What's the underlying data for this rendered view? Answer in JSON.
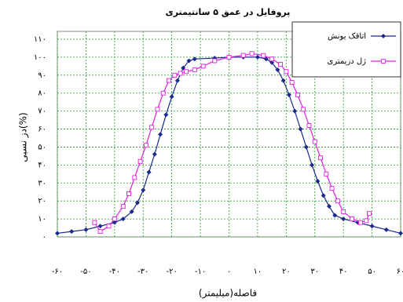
{
  "chart_data": {
    "type": "line",
    "title": "پروفایل در عمق ۵ سانتیمتری",
    "x_label": "فاصله(میلیمتر)",
    "y_label": "دز نسبی(%)",
    "xlim": [
      -60,
      60
    ],
    "ylim": [
      0,
      110
    ],
    "xticks": [
      {
        "value": -60,
        "label": "-۶۰"
      },
      {
        "value": -50,
        "label": "-۵۰"
      },
      {
        "value": -40,
        "label": "-۴۰"
      },
      {
        "value": -30,
        "label": "-۳۰"
      },
      {
        "value": -20,
        "label": "-۲۰"
      },
      {
        "value": -10,
        "label": "-۱۰"
      },
      {
        "value": 0,
        "label": "۰"
      },
      {
        "value": 10,
        "label": "۱۰"
      },
      {
        "value": 20,
        "label": "۲۰"
      },
      {
        "value": 30,
        "label": "۳۰"
      },
      {
        "value": 40,
        "label": "۴۰"
      },
      {
        "value": 50,
        "label": "۵۰"
      },
      {
        "value": 60,
        "label": "۶۰"
      }
    ],
    "yticks": [
      {
        "value": 0,
        "label": "۰"
      },
      {
        "value": 10,
        "label": "۱۰"
      },
      {
        "value": 20,
        "label": "۲۰"
      },
      {
        "value": 30,
        "label": "۳۰"
      },
      {
        "value": 40,
        "label": "۴۰"
      },
      {
        "value": 50,
        "label": "۵۰"
      },
      {
        "value": 60,
        "label": "۶۰"
      },
      {
        "value": 70,
        "label": "۷۰"
      },
      {
        "value": 80,
        "label": "۸۰"
      },
      {
        "value": 90,
        "label": "۹۰"
      },
      {
        "value": 100,
        "label": "۱۰۰"
      },
      {
        "value": 110,
        "label": "۱۱۰"
      }
    ],
    "grid": true,
    "legend": "upper right",
    "series": [
      {
        "name": "اتاقک یونش",
        "color": "#1a2a8c",
        "marker": "diamond",
        "x": [
          -60,
          -55,
          -50,
          -45,
          -40,
          -37,
          -34,
          -32,
          -30,
          -28,
          -26,
          -24,
          -22,
          -20,
          -18,
          -16,
          -14,
          -12,
          -5,
          0,
          5,
          10,
          13,
          15,
          17,
          19,
          21,
          23,
          25,
          27,
          29,
          31,
          33,
          35,
          37,
          40,
          45,
          50,
          55,
          60
        ],
        "values": [
          2,
          3,
          4,
          6,
          8,
          10,
          14,
          19,
          26,
          36,
          46,
          57,
          68,
          78,
          87,
          94,
          98,
          99,
          99.5,
          100,
          100,
          100,
          99,
          97,
          93,
          87,
          79,
          70,
          60,
          50,
          40,
          31,
          23,
          17,
          12,
          10,
          8,
          6,
          4,
          2
        ]
      },
      {
        "name": "ژل دزیمتری",
        "color": "#e020e0",
        "marker": "square",
        "x": [
          -47,
          -45,
          -42,
          -40,
          -37,
          -35,
          -33,
          -31,
          -29,
          -27,
          -25,
          -23,
          -21,
          -19,
          -17,
          -15,
          -12,
          -9,
          -5,
          0,
          5,
          8,
          12,
          15,
          18,
          20,
          22,
          24,
          26,
          28,
          30,
          32,
          34,
          36,
          38,
          40,
          43,
          46,
          48,
          49
        ],
        "values": [
          8,
          3,
          6,
          10,
          17,
          24,
          33,
          42,
          51,
          61,
          71,
          80,
          87,
          90,
          91,
          92,
          93,
          95,
          98,
          100,
          101,
          102,
          101,
          99,
          96,
          92,
          86,
          79,
          71,
          62,
          53,
          44,
          35,
          27,
          20,
          14,
          10,
          8,
          9,
          13
        ]
      }
    ]
  }
}
